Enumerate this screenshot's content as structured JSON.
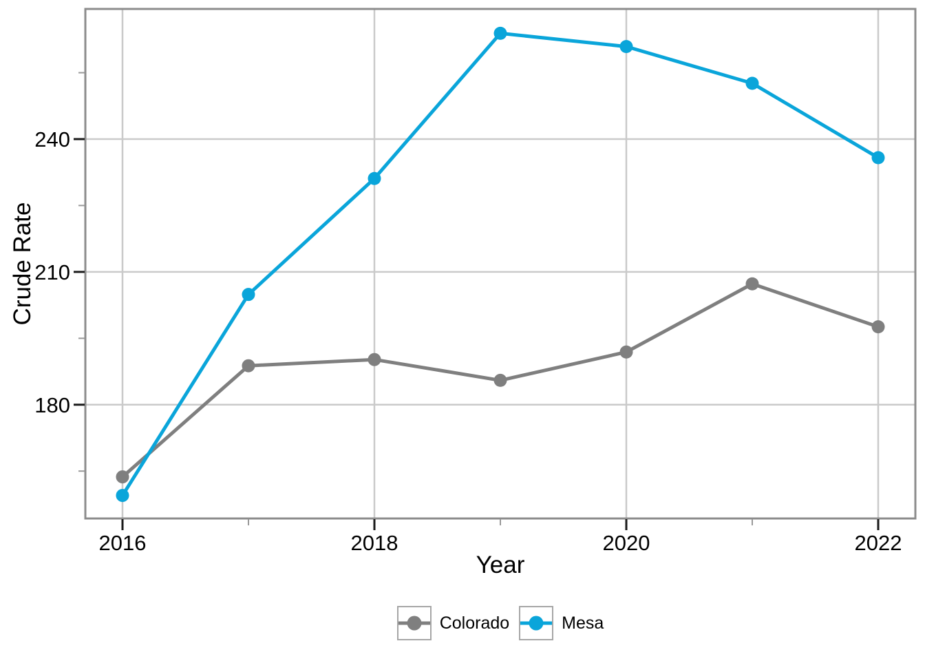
{
  "chart_data": {
    "type": "line",
    "x": [
      2016,
      2017,
      2018,
      2019,
      2020,
      2021,
      2022
    ],
    "series": [
      {
        "name": "Colorado",
        "color": "#7F7F7F",
        "values": [
          163.7,
          188.8,
          190.2,
          185.5,
          191.9,
          207.3,
          197.6
        ]
      },
      {
        "name": "Mesa",
        "color": "#0AA5DA",
        "values": [
          159.5,
          204.9,
          231.1,
          263.9,
          260.9,
          252.6,
          235.8
        ]
      }
    ],
    "title": "",
    "xlabel": "Year",
    "ylabel": "Crude Rate",
    "x_major_ticks": [
      2016,
      2018,
      2020,
      2022
    ],
    "x_minor_ticks": [
      2017,
      2019,
      2021
    ],
    "y_major_ticks": [
      180,
      210,
      240
    ],
    "y_minor_ticks": [
      165,
      195,
      225,
      255
    ],
    "xlim": [
      2015.705,
      2022.295
    ],
    "ylim": [
      154.3,
      269.4
    ],
    "grid": "major gridlines on (light gray), minor off",
    "legend_position": "bottom-center",
    "marker": "circle",
    "line_width": 5,
    "marker_radius": 9.5,
    "colors": {
      "panel_background": "#FFFFFF",
      "panel_border": "#8C8C8C",
      "major_gridline": "#CACACA",
      "major_tick": "#1A1A1A",
      "minor_tick": "#999999",
      "text": "#000000",
      "colorado": "#7F7F7F",
      "mesa": "#0AA5DA"
    }
  },
  "legend": {
    "entries": [
      {
        "label": "Colorado"
      },
      {
        "label": "Mesa"
      }
    ]
  }
}
